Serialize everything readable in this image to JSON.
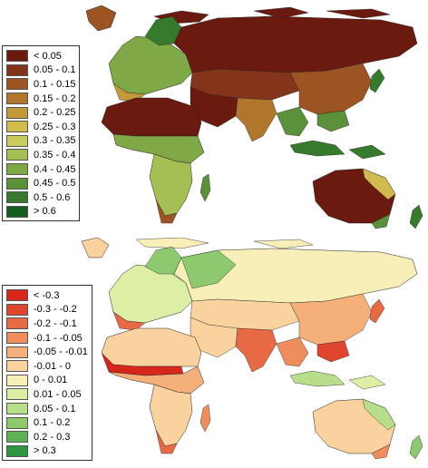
{
  "maps": [
    {
      "id": "top",
      "legend": [
        {
          "label": "< 0.05",
          "color": "#6b1a10"
        },
        {
          "label": "0.05 - 0.1",
          "color": "#84341a"
        },
        {
          "label": "0.1 - 0.15",
          "color": "#9c5522"
        },
        {
          "label": "0.15 - 0.2",
          "color": "#b0762c"
        },
        {
          "label": "0.2 - 0.25",
          "color": "#c39a3a"
        },
        {
          "label": "0.25 - 0.3",
          "color": "#d1bb4e"
        },
        {
          "label": "0.3 - 0.35",
          "color": "#c9cc5e"
        },
        {
          "label": "0.35 - 0.4",
          "color": "#a6bf54"
        },
        {
          "label": "0.4 - 0.45",
          "color": "#7fa846"
        },
        {
          "label": "0.45 - 0.5",
          "color": "#5a913a"
        },
        {
          "label": "0.5 - 0.6",
          "color": "#367a2d"
        },
        {
          "label": "> 0.6",
          "color": "#135e1c"
        }
      ]
    },
    {
      "id": "bottom",
      "legend": [
        {
          "label": "< -0.3",
          "color": "#d7261c"
        },
        {
          "label": "-0.3 - -0.2",
          "color": "#e0452f"
        },
        {
          "label": "-0.2 - -0.1",
          "color": "#e86a45"
        },
        {
          "label": "-0.1 - -0.05",
          "color": "#ef8d5c"
        },
        {
          "label": "-0.05 - -0.01",
          "color": "#f5b07a"
        },
        {
          "label": "-0.01 - 0",
          "color": "#fad29d"
        },
        {
          "label": "0 - 0.01",
          "color": "#f8efb8"
        },
        {
          "label": "0.01 - 0.05",
          "color": "#dcefa4"
        },
        {
          "label": "0.05 - 0.1",
          "color": "#b7df8b"
        },
        {
          "label": "0.1 - 0.2",
          "color": "#8dca6f"
        },
        {
          "label": "0.2 - 0.3",
          "color": "#5fb254"
        },
        {
          "label": "> 0.3",
          "color": "#2f9640"
        }
      ]
    }
  ]
}
